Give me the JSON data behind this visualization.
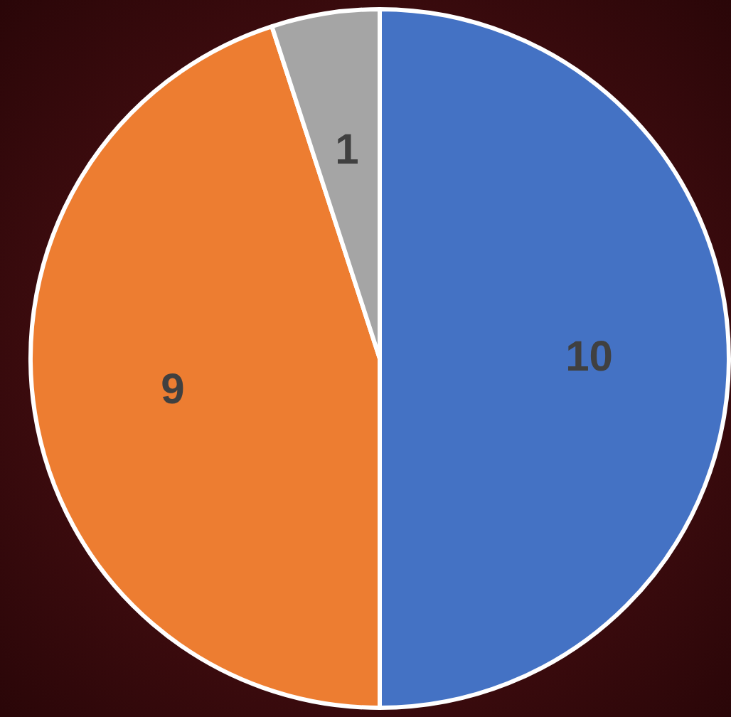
{
  "chart_data": {
    "type": "pie",
    "categories": [
      null,
      null,
      null
    ],
    "values": [
      10,
      9,
      1
    ],
    "colors": [
      "#4472c4",
      "#ed7d31",
      "#a5a5a5"
    ],
    "data_labels": true,
    "legend": false
  }
}
